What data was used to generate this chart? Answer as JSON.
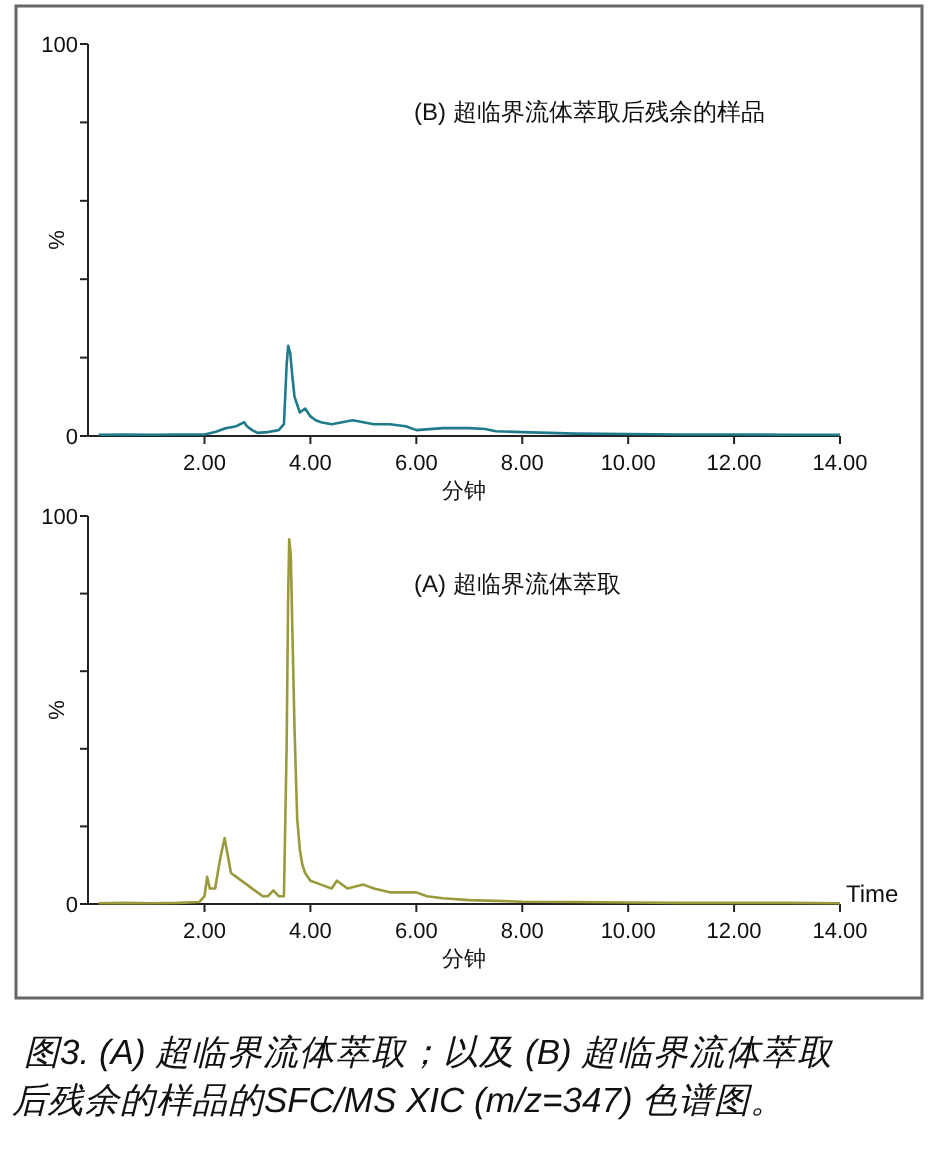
{
  "chart_data": [
    {
      "type": "line",
      "xlabel": "分钟",
      "ylabel": "%",
      "xlim": [
        -0.2,
        14.0
      ],
      "ylim": [
        0,
        100
      ],
      "xticks": [
        {
          "value": 2,
          "label": "2.00"
        },
        {
          "value": 4,
          "label": "4.00"
        },
        {
          "value": 6,
          "label": "6.00"
        },
        {
          "value": 8,
          "label": "8.00"
        },
        {
          "value": 10,
          "label": "10.00"
        },
        {
          "value": 12,
          "label": "12.00"
        },
        {
          "value": 14,
          "label": "14.00"
        }
      ],
      "yticks": [
        {
          "value": 0,
          "label": "0"
        },
        {
          "value": 20,
          "label": null
        },
        {
          "value": 40,
          "label": null
        },
        {
          "value": 60,
          "label": null
        },
        {
          "value": 80,
          "label": null
        },
        {
          "value": 100,
          "label": "100"
        }
      ],
      "annotations": [
        "(B) 超临界流体萃取后残余的样品"
      ],
      "series": [
        {
          "color": "#1f7a8c",
          "x": [
            0,
            0.5,
            1.0,
            1.5,
            2.0,
            2.2,
            2.4,
            2.6,
            2.75,
            2.8,
            2.9,
            3.0,
            3.2,
            3.4,
            3.5,
            3.55,
            3.58,
            3.62,
            3.66,
            3.7,
            3.8,
            3.9,
            4.0,
            4.1,
            4.2,
            4.4,
            4.6,
            4.8,
            5.0,
            5.2,
            5.5,
            5.8,
            6.0,
            6.5,
            7.0,
            7.3,
            7.5,
            8.0,
            8.5,
            9.0,
            10.0,
            11.0,
            12.0,
            13.0,
            14.0
          ],
          "values": [
            0.3,
            0.4,
            0.3,
            0.4,
            0.4,
            1.0,
            2.0,
            2.5,
            3.5,
            2.5,
            1.5,
            0.8,
            1.0,
            1.5,
            3.0,
            18,
            23,
            21,
            15,
            10,
            6,
            7,
            5,
            4,
            3.5,
            3,
            3.5,
            4,
            3.5,
            3,
            3,
            2.5,
            1.5,
            2,
            2,
            1.8,
            1.2,
            1,
            0.8,
            0.6,
            0.5,
            0.4,
            0.4,
            0.3,
            0.3
          ]
        }
      ]
    },
    {
      "type": "line",
      "xlabel": "分钟",
      "ylabel": "%",
      "xlim": [
        -0.2,
        14.0
      ],
      "ylim": [
        0,
        100
      ],
      "xticks": [
        {
          "value": 2,
          "label": "2.00"
        },
        {
          "value": 4,
          "label": "4.00"
        },
        {
          "value": 6,
          "label": "6.00"
        },
        {
          "value": 8,
          "label": "8.00"
        },
        {
          "value": 10,
          "label": "10.00"
        },
        {
          "value": 12,
          "label": "12.00"
        },
        {
          "value": 14,
          "label": "14.00"
        }
      ],
      "yticks": [
        {
          "value": 0,
          "label": "0"
        },
        {
          "value": 20,
          "label": null
        },
        {
          "value": 40,
          "label": null
        },
        {
          "value": 60,
          "label": null
        },
        {
          "value": 80,
          "label": null
        },
        {
          "value": 100,
          "label": "100"
        }
      ],
      "annotations": [
        "(A) 超临界流体萃取",
        "Time",
        "图3. (A) 超临界流体萃取；以及 (B) 超临界流体萃取后残余的样品的SFC/MS XIC (m/z=347) 色谱图。"
      ],
      "series": [
        {
          "color": "#9a9a3c",
          "x": [
            0,
            0.5,
            1.0,
            1.5,
            1.9,
            2.0,
            2.05,
            2.1,
            2.2,
            2.3,
            2.38,
            2.42,
            2.5,
            2.6,
            2.8,
            3.0,
            3.1,
            3.2,
            3.3,
            3.4,
            3.5,
            3.55,
            3.58,
            3.6,
            3.63,
            3.66,
            3.7,
            3.75,
            3.8,
            3.85,
            3.9,
            4.0,
            4.2,
            4.4,
            4.5,
            4.7,
            5.0,
            5.2,
            5.5,
            6.0,
            6.2,
            6.5,
            7.0,
            7.5,
            8.0,
            9.0,
            10.0,
            11.0,
            12.0,
            13.0,
            14.0
          ],
          "values": [
            0.2,
            0.3,
            0.2,
            0.3,
            0.5,
            2,
            7,
            4,
            4,
            12,
            17,
            14,
            8,
            7,
            5,
            3,
            2,
            2,
            3.5,
            2,
            2,
            40,
            80,
            94,
            90,
            70,
            45,
            22,
            14,
            10,
            8,
            6,
            5,
            4,
            6,
            4,
            5,
            4,
            3,
            3,
            2,
            1.5,
            1,
            0.8,
            0.6,
            0.5,
            0.4,
            0.3,
            0.3,
            0.3,
            0.2
          ]
        }
      ]
    }
  ]
}
